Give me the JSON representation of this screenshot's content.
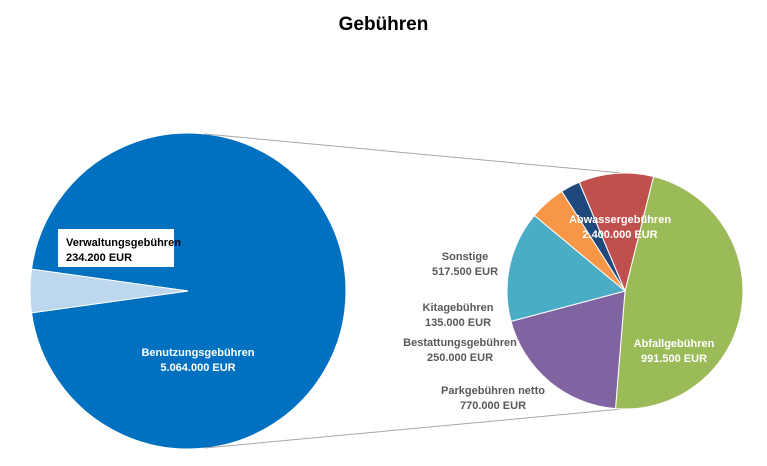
{
  "chart_data": {
    "type": "bar-of-pie",
    "title": "Gebühren",
    "main_pie": {
      "slices": [
        {
          "label": "Benutzungsgebühren",
          "value": 5064000,
          "value_text": "5.064.000 EUR",
          "color": "#0070C0"
        },
        {
          "label": "Verwaltungsgebühren",
          "value": 234200,
          "value_text": "234.200 EUR",
          "color": "#BDD7EE"
        }
      ]
    },
    "secondary_pie": {
      "exploded_from": "Benutzungsgebühren",
      "slices": [
        {
          "label": "Abwassergebühren",
          "value": 2400000,
          "value_text": "2.400.000 EUR",
          "color": "#9BBB59"
        },
        {
          "label": "Abfallgebühren",
          "value": 991500,
          "value_text": "991.500 EUR",
          "color": "#8064A2"
        },
        {
          "label": "Parkgebühren netto",
          "value": 770000,
          "value_text": "770.000 EUR",
          "color": "#4BACC6"
        },
        {
          "label": "Bestattungsgebühren",
          "value": 250000,
          "value_text": "250.000 EUR",
          "color": "#F79646"
        },
        {
          "label": "Kitagebühren",
          "value": 135000,
          "value_text": "135.000 EUR",
          "color": "#1F497D"
        },
        {
          "label": "Sonstige",
          "value": 517500,
          "value_text": "517.500 EUR",
          "color": "#C0504D"
        }
      ]
    }
  }
}
